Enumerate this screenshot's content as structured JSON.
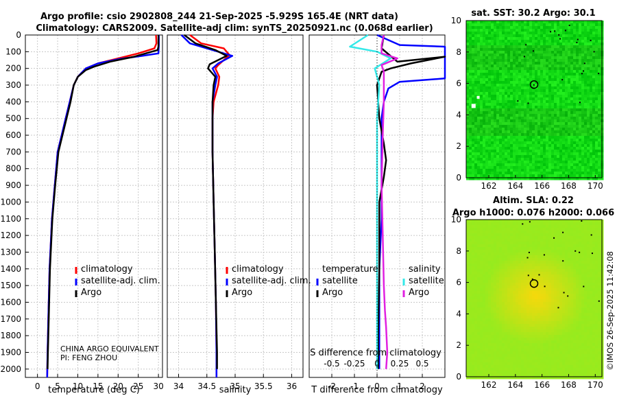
{
  "header": {
    "line1": "Argo profile: csio 2902808_244 21-Sep-2025 -5.929S 165.4E (NRT data)",
    "line2": "Climatology: CARS2009. Satellite-adj clim: synTS_20250921.nc (0.068d earlier)"
  },
  "colors": {
    "climatology": "#ff0000",
    "satellite_adj": "#0000ff",
    "argo": "#000000",
    "salinity_sat": "#33e8e8",
    "salinity_argo": "#e020e0",
    "grid": "#c8c8c8"
  },
  "stamp": "©IMOS 26-Sep-2025 11:42:08",
  "chart_data": [
    {
      "id": "temperature",
      "type": "line",
      "xlabel": "temperature (deg C)",
      "xlim": [
        -3,
        31
      ],
      "xticks": [
        0,
        5,
        10,
        15,
        20,
        25,
        30
      ],
      "ylim": [
        0,
        2050
      ],
      "yticks": [
        0,
        100,
        200,
        300,
        400,
        500,
        600,
        700,
        800,
        900,
        1000,
        1100,
        1200,
        1300,
        1400,
        1500,
        1600,
        1700,
        1800,
        1900,
        2000
      ],
      "note_lines": [
        "CHINA ARGO EQUIVALENT",
        "PI: FENG ZHOU"
      ],
      "legend": [
        "climatology",
        "satellite-adj. clim.",
        "Argo"
      ],
      "series": [
        {
          "name": "climatology",
          "color": "#ff0000",
          "x": [
            29.4,
            29.5,
            29.0,
            25.0,
            20.0,
            15.0,
            12.0,
            10.0,
            9.0,
            8.0,
            7.0,
            5.0,
            4.3,
            3.6,
            3.0,
            2.7,
            2.5,
            2.4
          ],
          "y": [
            0,
            50,
            80,
            110,
            140,
            170,
            200,
            250,
            300,
            400,
            500,
            700,
            900,
            1100,
            1400,
            1700,
            1900,
            2050
          ]
        },
        {
          "name": "satellite-adj. clim.",
          "color": "#0000ff",
          "x": [
            30.1,
            30.1,
            30.0,
            26.0,
            20.0,
            15.0,
            12.0,
            10.0,
            9.0,
            8.0,
            7.0,
            5.0,
            4.3,
            3.6,
            3.0,
            2.7,
            2.5,
            2.4
          ],
          "y": [
            0,
            60,
            110,
            125,
            145,
            170,
            200,
            250,
            300,
            400,
            500,
            700,
            900,
            1100,
            1400,
            1700,
            1900,
            2050
          ]
        },
        {
          "name": "Argo",
          "color": "#000000",
          "x": [
            30.0,
            30.0,
            29.8,
            24.0,
            18.0,
            14.0,
            12.0,
            10.0,
            9.0,
            8.2,
            7.2,
            5.2,
            4.4,
            3.7,
            3.1,
            2.8,
            2.6,
            2.5
          ],
          "y": [
            0,
            70,
            90,
            130,
            160,
            190,
            210,
            250,
            300,
            400,
            500,
            700,
            900,
            1100,
            1400,
            1700,
            1900,
            2000
          ]
        }
      ]
    },
    {
      "id": "salinity",
      "type": "line",
      "xlabel": "salinity",
      "xlim": [
        33.8,
        36.2
      ],
      "xticks": [
        34,
        34.5,
        35,
        35.5,
        36
      ],
      "xtick_labels": [
        "34",
        "34.5",
        "35",
        "35.5",
        "36"
      ],
      "ylim": [
        0,
        2050
      ],
      "legend": [
        "climatology",
        "satellite-adj. clim.",
        "Argo"
      ],
      "series": [
        {
          "name": "climatology",
          "color": "#ff0000",
          "x": [
            34.2,
            34.4,
            34.8,
            34.9,
            34.7,
            34.65,
            34.72,
            34.7,
            34.62,
            34.6,
            34.6,
            34.62,
            34.64,
            34.66,
            34.67,
            34.67
          ],
          "y": [
            0,
            50,
            80,
            120,
            180,
            200,
            250,
            300,
            400,
            500,
            700,
            1000,
            1300,
            1600,
            1900,
            2050
          ]
        },
        {
          "name": "satellite-adj. clim.",
          "color": "#0000ff",
          "x": [
            34.05,
            34.2,
            34.6,
            34.95,
            34.7,
            34.6,
            34.68,
            34.65,
            34.6,
            34.6,
            34.6,
            34.62,
            34.64,
            34.66,
            34.67,
            34.67
          ],
          "y": [
            0,
            50,
            90,
            125,
            170,
            200,
            250,
            300,
            400,
            500,
            700,
            1000,
            1300,
            1600,
            1900,
            2050
          ]
        },
        {
          "name": "Argo",
          "color": "#000000",
          "x": [
            34.1,
            34.3,
            34.65,
            34.85,
            34.55,
            34.52,
            34.65,
            34.62,
            34.6,
            34.6,
            34.6,
            34.62,
            34.64,
            34.66,
            34.68,
            34.68
          ],
          "y": [
            0,
            50,
            90,
            125,
            175,
            200,
            250,
            300,
            400,
            500,
            700,
            1000,
            1300,
            1600,
            1900,
            2000
          ]
        }
      ]
    },
    {
      "id": "difference",
      "type": "line",
      "xlabel": "T difference from climatology",
      "x2label": "S difference from climatology",
      "xlim": [
        -3,
        3
      ],
      "xticks": [
        -2,
        -1,
        0,
        1,
        2
      ],
      "xtick_labels": [
        "-2",
        "-1",
        "0",
        "1",
        "2"
      ],
      "x2ticks": [
        -2,
        -1,
        0,
        1,
        2
      ],
      "x2tick_labels": [
        "-0.5",
        "-0.25",
        "0",
        "0.25",
        "0.5"
      ],
      "ylim": [
        0,
        2050
      ],
      "legend_headers": [
        "temperature",
        "salinity"
      ],
      "legend": [
        "satellite",
        "Argo",
        "satellite",
        "Argo"
      ],
      "series": [
        {
          "name": "temperature satellite",
          "color": "#0000ff",
          "x": [
            0.0,
            1.0,
            3.0,
            3.0,
            1.0,
            0.5,
            0.3,
            0.2,
            0.2,
            0.2,
            0.2,
            0.1,
            0.1,
            0.1,
            0.1
          ],
          "y": [
            0,
            60,
            70,
            260,
            280,
            320,
            400,
            500,
            700,
            900,
            1100,
            1400,
            1700,
            1900,
            2000
          ]
        },
        {
          "name": "temperature Argo",
          "color": "#000000",
          "x": [
            0.3,
            0.2,
            0.9,
            3.0,
            1.5,
            0.6,
            0.2,
            0.0,
            0.1,
            0.3,
            0.4,
            0.3,
            0.1,
            0.1,
            0.05,
            0.05
          ],
          "y": [
            0,
            80,
            160,
            130,
            170,
            200,
            220,
            300,
            500,
            650,
            750,
            850,
            1000,
            1400,
            1800,
            2000
          ]
        },
        {
          "name": "salinity satellite",
          "color": "#33e8e8",
          "x": [
            -0.4,
            -1.2,
            0.0,
            0.6,
            -0.1,
            0.1,
            0.0,
            0.0,
            0.0,
            0.0,
            0.0,
            0.0
          ],
          "y": [
            0,
            70,
            100,
            140,
            200,
            300,
            500,
            800,
            1200,
            1600,
            1900,
            2000
          ]
        },
        {
          "name": "salinity Argo",
          "color": "#e020e0",
          "x": [
            0.3,
            0.2,
            0.2,
            0.9,
            0.2,
            0.3,
            0.3,
            0.25,
            0.2,
            0.25,
            0.3,
            0.35,
            0.4,
            0.45,
            0.4
          ],
          "y": [
            0,
            60,
            110,
            140,
            180,
            220,
            400,
            600,
            900,
            1200,
            1500,
            1650,
            1750,
            1900,
            2000
          ]
        }
      ]
    },
    {
      "id": "sst_map",
      "type": "heatmap",
      "title": "sat. SST: 30.2 Argo: 30.1",
      "xlim": [
        160.3,
        170.5
      ],
      "ylim": [
        0,
        10
      ],
      "xticks": [
        162,
        164,
        166,
        168,
        170
      ],
      "yticks": [
        0,
        2,
        4,
        6,
        8,
        10
      ],
      "marker": {
        "x": 165.4,
        "y": 5.93
      }
    },
    {
      "id": "sla_map",
      "type": "heatmap",
      "title": "Altim. SLA: 0.22",
      "subtitle": "Argo h1000: 0.076 h2000: 0.066",
      "xlim": [
        160.3,
        170.5
      ],
      "ylim": [
        0,
        10
      ],
      "xticks": [
        162,
        164,
        166,
        168,
        170
      ],
      "yticks": [
        0,
        2,
        4,
        6,
        8,
        10
      ],
      "marker": {
        "x": 165.4,
        "y": 5.93
      }
    }
  ]
}
